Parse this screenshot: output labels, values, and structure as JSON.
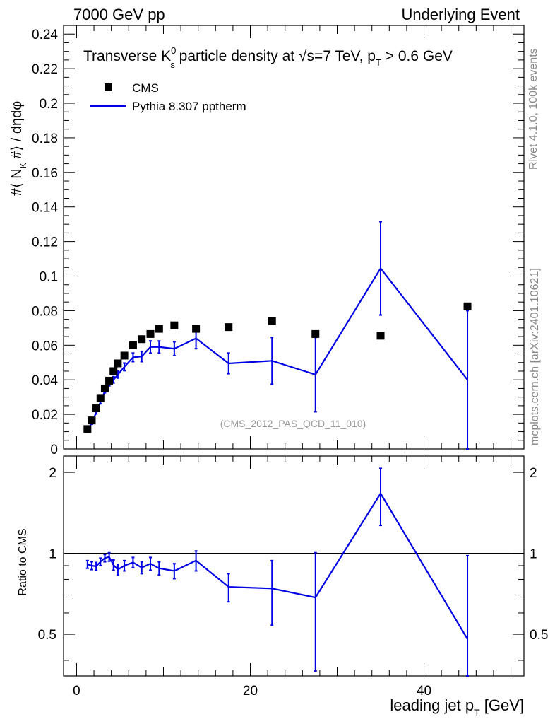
{
  "header": {
    "left": "7000 GeV pp",
    "right": "Underlying Event"
  },
  "side_labels": {
    "rivet": "Rivet 4.1.0,  100k events",
    "mcplots": "mcplots.cern.ch [arXiv:2401.10621]"
  },
  "colors": {
    "data": "#000000",
    "mc": "#0000e6",
    "watermark": "#999999",
    "side": "#888888"
  },
  "chart_data": [
    {
      "type": "scatter",
      "panel": "main",
      "title": "Transverse K particle density at √s=7 TeV, p_T > 0.6 GeV",
      "title_parts": {
        "prefix": "Transverse K",
        "k_sup": "0",
        "k_sub": "s",
        "middle": " particle density at ",
        "sqrt": "√s=7 TeV, p",
        "pt_sub": "T",
        "suffix": " > 0.6 GeV"
      },
      "ylabel": "#⟨ N_K #⟩ / dηdφ",
      "ylabel_parts": {
        "main": "#⟨ N",
        "k_sub": "K",
        "rest": " #⟩ / dηdφ"
      },
      "xlim": [
        -1.5,
        51.5
      ],
      "ylim": [
        0,
        0.245
      ],
      "yticks": [
        0,
        0.02,
        0.04,
        0.06,
        0.08,
        0.1,
        0.12,
        0.14,
        0.16,
        0.18,
        0.2,
        0.22,
        0.24
      ],
      "ytick_labels": [
        "0",
        "0.02",
        "0.04",
        "0.06",
        "0.08",
        "0.1",
        "0.12",
        "0.14",
        "0.16",
        "0.18",
        "0.2",
        "0.22",
        "0.24"
      ],
      "watermark": "(CMS_2012_PAS_QCD_11_010)",
      "legend": {
        "position": "top-left",
        "entries": [
          "CMS",
          "Pythia 8.307 pptherm"
        ]
      },
      "series": [
        {
          "name": "CMS",
          "style": "markers",
          "x": [
            1.25,
            1.75,
            2.25,
            2.75,
            3.25,
            3.75,
            4.25,
            4.75,
            5.5,
            6.5,
            7.5,
            8.5,
            9.5,
            11.25,
            13.75,
            17.5,
            22.5,
            27.5,
            35.0,
            45.0
          ],
          "y": [
            0.0115,
            0.0165,
            0.0235,
            0.0295,
            0.035,
            0.0395,
            0.045,
            0.0495,
            0.054,
            0.06,
            0.0635,
            0.0665,
            0.0695,
            0.0715,
            0.0695,
            0.0705,
            0.074,
            0.0665,
            0.0655,
            0.0825
          ]
        },
        {
          "name": "Pythia 8.307 pptherm",
          "style": "line",
          "x": [
            1.25,
            1.75,
            2.25,
            2.75,
            3.25,
            3.75,
            4.25,
            4.75,
            5.5,
            6.5,
            7.5,
            8.5,
            9.5,
            11.25,
            13.75,
            17.5,
            22.5,
            27.5,
            35.0,
            45.0
          ],
          "y": [
            0.0105,
            0.015,
            0.021,
            0.027,
            0.0335,
            0.038,
            0.04,
            0.043,
            0.0475,
            0.053,
            0.0535,
            0.059,
            0.059,
            0.058,
            0.064,
            0.0495,
            0.051,
            0.043,
            0.1045,
            0.04
          ],
          "err": [
            0.0005,
            0.0007,
            0.0008,
            0.0009,
            0.001,
            0.0015,
            0.0018,
            0.002,
            0.0022,
            0.0025,
            0.003,
            0.0035,
            0.0035,
            0.004,
            0.006,
            0.006,
            0.0135,
            0.0215,
            0.027,
            0.04
          ]
        }
      ]
    },
    {
      "type": "line",
      "panel": "ratio",
      "ylabel": "Ratio to CMS",
      "xlabel": "leading jet p_T [GeV]",
      "xlabel_parts": {
        "main": "leading jet p",
        "sub": "T",
        "unit": " [GeV]"
      },
      "xlim": [
        -1.5,
        51.5
      ],
      "ylim": [
        0.35,
        2.3
      ],
      "xticks": [
        0,
        20,
        40
      ],
      "xtick_labels": [
        "0",
        "20",
        "40"
      ],
      "yticks": [
        0.5,
        1,
        2
      ],
      "ytick_labels": [
        "0.5",
        "1",
        "2"
      ],
      "reference_line": 1,
      "series": [
        {
          "name": "Pythia 8.307 pptherm / CMS",
          "x": [
            1.25,
            1.75,
            2.25,
            2.75,
            3.25,
            3.75,
            4.25,
            4.75,
            5.5,
            6.5,
            7.5,
            8.5,
            9.5,
            11.25,
            13.75,
            17.5,
            22.5,
            27.5,
            35.0,
            45.0
          ],
          "y": [
            0.91,
            0.9,
            0.895,
            0.93,
            0.96,
            0.97,
            0.905,
            0.87,
            0.9,
            0.925,
            0.885,
            0.915,
            0.88,
            0.86,
            0.94,
            0.75,
            0.74,
            0.685,
            1.67,
            0.48
          ],
          "err": [
            0.03,
            0.03,
            0.03,
            0.03,
            0.03,
            0.035,
            0.04,
            0.04,
            0.04,
            0.04,
            0.045,
            0.05,
            0.05,
            0.055,
            0.08,
            0.09,
            0.2,
            0.32,
            0.4,
            0.5
          ]
        }
      ]
    }
  ]
}
